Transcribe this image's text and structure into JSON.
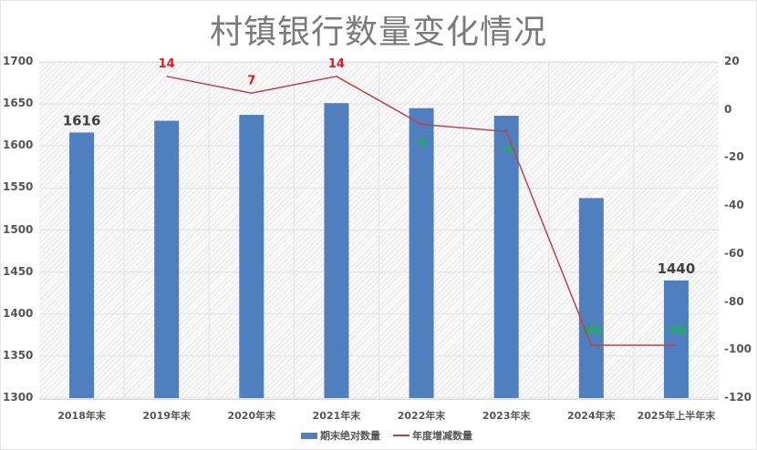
{
  "chart_data": {
    "type": "bar+line",
    "title": "村镇银行数量变化情况",
    "categories": [
      "2018年末",
      "2019年末",
      "2020年末",
      "2021年末",
      "2022年末",
      "2023年末",
      "2024年末",
      "2025年上半年末"
    ],
    "series": [
      {
        "name": "期末绝对数量",
        "type": "bar",
        "axis": "left",
        "color": "#4f7fbf",
        "values": [
          1616,
          1630,
          1637,
          1651,
          1645,
          1636,
          1538,
          1440
        ]
      },
      {
        "name": "年度增减数量",
        "type": "line",
        "axis": "right",
        "color": "#b9434b",
        "values": [
          null,
          14,
          7,
          14,
          -6,
          -9,
          -98,
          -98
        ]
      }
    ],
    "data_labels": {
      "bar": [
        {
          "index": 0,
          "text": "1616"
        },
        {
          "index": 7,
          "text": "1440"
        }
      ],
      "line": [
        {
          "index": 1,
          "text": "14",
          "color": "#e8141b"
        },
        {
          "index": 2,
          "text": "7",
          "color": "#e8141b"
        },
        {
          "index": 3,
          "text": "14",
          "color": "#e8141b"
        },
        {
          "index": 4,
          "text": "-6",
          "color": "#1fae5a"
        },
        {
          "index": 5,
          "text": "-9",
          "color": "#1fae5a"
        },
        {
          "index": 6,
          "text": "-98",
          "color": "#1fae5a"
        },
        {
          "index": 7,
          "text": "-98",
          "color": "#1fae5a"
        }
      ]
    },
    "left_axis": {
      "ylim": [
        1300,
        1700
      ],
      "ticks": [
        "1700",
        "1650",
        "1600",
        "1550",
        "1500",
        "1450",
        "1400",
        "1350",
        "1300"
      ]
    },
    "right_axis": {
      "ylim": [
        -120,
        20
      ],
      "ticks": [
        "20",
        "0",
        "-20",
        "-40",
        "-60",
        "-80",
        "-100",
        "-120"
      ]
    },
    "grid": true,
    "legend_position": "bottom"
  },
  "legend": {
    "bar_label": "期末绝对数量",
    "line_label": "年度增减数量"
  }
}
